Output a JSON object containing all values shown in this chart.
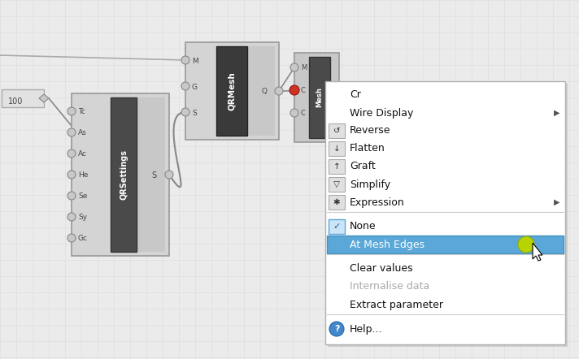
{
  "canvas_color": "#ebebeb",
  "grid_color": "#dcdcdc",
  "menu_items": [
    {
      "label": "Cr",
      "has_icon": false,
      "has_arrow": false,
      "disabled": false,
      "separator_before": false,
      "highlighted": false,
      "has_check": false
    },
    {
      "label": "Wire Display",
      "has_icon": false,
      "has_arrow": true,
      "disabled": false,
      "separator_before": false,
      "highlighted": false,
      "has_check": false
    },
    {
      "label": "Reverse",
      "has_icon": true,
      "has_arrow": false,
      "disabled": false,
      "separator_before": false,
      "highlighted": false,
      "has_check": false
    },
    {
      "label": "Flatten",
      "has_icon": true,
      "has_arrow": false,
      "disabled": false,
      "separator_before": false,
      "highlighted": false,
      "has_check": false
    },
    {
      "label": "Graft",
      "has_icon": true,
      "has_arrow": false,
      "disabled": false,
      "separator_before": false,
      "highlighted": false,
      "has_check": false
    },
    {
      "label": "Simplify",
      "has_icon": true,
      "has_arrow": false,
      "disabled": false,
      "separator_before": false,
      "highlighted": false,
      "has_check": false
    },
    {
      "label": "Expression",
      "has_icon": true,
      "has_arrow": true,
      "disabled": false,
      "separator_before": false,
      "highlighted": false,
      "has_check": false
    },
    {
      "label": "None",
      "has_icon": false,
      "has_arrow": false,
      "disabled": false,
      "separator_before": true,
      "highlighted": false,
      "has_check": true
    },
    {
      "label": "At Mesh Edges",
      "has_icon": false,
      "has_arrow": false,
      "disabled": false,
      "separator_before": false,
      "highlighted": true,
      "has_check": false
    },
    {
      "label": "Clear values",
      "has_icon": false,
      "has_arrow": false,
      "disabled": false,
      "separator_before": true,
      "highlighted": false,
      "has_check": false
    },
    {
      "label": "Internalise data",
      "has_icon": false,
      "has_arrow": false,
      "disabled": true,
      "separator_before": false,
      "highlighted": false,
      "has_check": false
    },
    {
      "label": "Extract parameter",
      "has_icon": false,
      "has_arrow": false,
      "disabled": false,
      "separator_before": false,
      "highlighted": false,
      "has_check": false
    },
    {
      "label": "Help...",
      "has_icon": true,
      "icon_type": "help",
      "has_arrow": false,
      "disabled": false,
      "separator_before": true,
      "highlighted": false,
      "has_check": false
    }
  ],
  "menu_bg": "#ffffff",
  "menu_border": "#b0b0b0",
  "highlight_bg": "#5ba8d8",
  "highlight_border": "#4090c0",
  "text_color": "#111111",
  "disabled_color": "#aaaaaa",
  "separator_color": "#cccccc",
  "icon_bg": "#e0e0e0",
  "icon_border": "#aaaaaa",
  "check_bg": "#cce4f7",
  "check_border": "#5ba8d8"
}
